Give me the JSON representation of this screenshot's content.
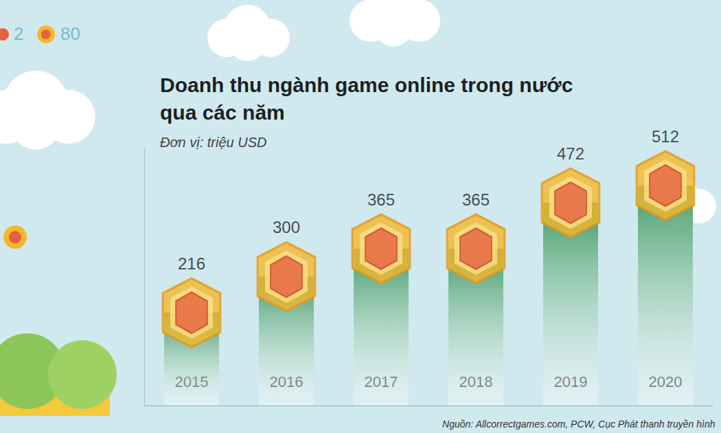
{
  "chart_data": {
    "type": "bar",
    "title": "Doanh thu ngành game online trong nước qua các năm",
    "subtitle": "Đơn vị: triệu USD",
    "source": "Nguồn: Allcorrectgames.com, PCW, Cục Phát thanh truyền hình",
    "annotations": [
      "2",
      "80"
    ],
    "categories": [
      "2015",
      "2016",
      "2017",
      "2018",
      "2019",
      "2020"
    ],
    "values": [
      216,
      300,
      365,
      365,
      472,
      512
    ],
    "color": "#3f9a63",
    "ylim": [
      0,
      600
    ],
    "grid": false,
    "data_labels": true,
    "tick_labels": "x"
  }
}
